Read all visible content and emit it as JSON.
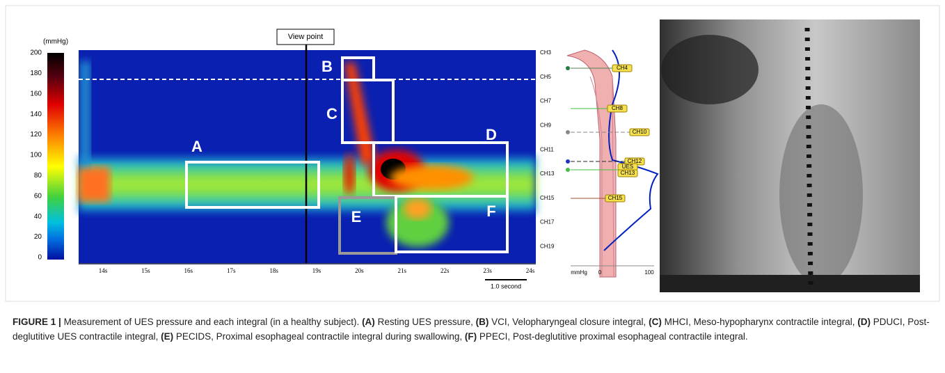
{
  "colorbar": {
    "unit": "(mmHg)",
    "ticks": [
      200,
      180,
      160,
      140,
      120,
      100,
      80,
      60,
      40,
      20,
      0
    ]
  },
  "view_point": "View point",
  "time_ticks": [
    "14s",
    "15s",
    "16s",
    "17s",
    "18s",
    "19s",
    "20s",
    "21s",
    "22s",
    "23s",
    "24s"
  ],
  "channels": [
    "CH3",
    "CH5",
    "CH7",
    "CH9",
    "CH11",
    "CH13",
    "CH15",
    "CH17",
    "CH19"
  ],
  "boxes": [
    "A",
    "B",
    "C",
    "D",
    "E",
    "F"
  ],
  "scale_bar": "1.0 second",
  "diagram": {
    "labels": [
      "CH4",
      "CH8",
      "CH10",
      "CH12",
      "UES",
      "CH13",
      "CH15"
    ],
    "axis": [
      "mmHg",
      "0",
      "100"
    ]
  },
  "caption": {
    "label": "FIGURE 1 |",
    "text": "Measurement of UES pressure and each integral (in a healthy subject).",
    "items": [
      {
        "key": "(A)",
        "text": "Resting UES pressure,"
      },
      {
        "key": "(B)",
        "text": "VCI, Velopharyngeal closure integral,"
      },
      {
        "key": "(C)",
        "text": "MHCI, Meso-hypopharynx contractile integral,"
      },
      {
        "key": "(D)",
        "text": "PDUCI, Post-deglutitive UES contractile integral,"
      },
      {
        "key": "(E)",
        "text": "PECIDS, Proximal esophageal contractile integral during swallowing,"
      },
      {
        "key": "(F)",
        "text": "PPECI, Post-deglutitive proximal esophageal contractile integral."
      }
    ]
  }
}
